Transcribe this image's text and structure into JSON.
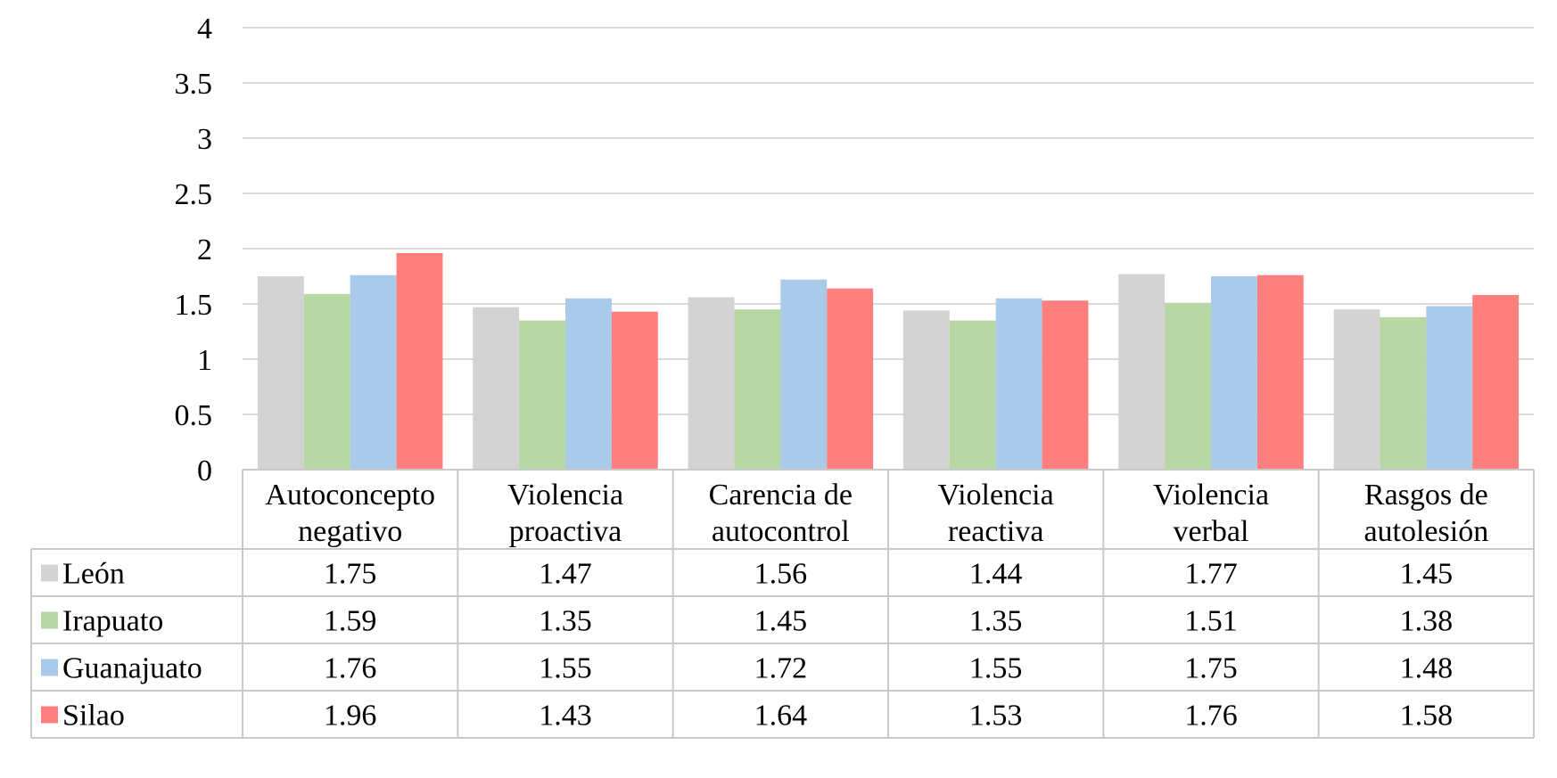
{
  "chart_data": {
    "type": "bar",
    "title": "",
    "xlabel": "",
    "ylabel": "",
    "ylim": [
      0,
      4
    ],
    "yticks": [
      "0",
      "0.5",
      "1",
      "1.5",
      "2",
      "2.5",
      "3",
      "3.5",
      "4"
    ],
    "grid": true,
    "legend": "data-table",
    "categories": [
      [
        "Autoconcepto",
        "negativo"
      ],
      [
        "Violencia",
        "proactiva"
      ],
      [
        "Carencia de",
        "autocontrol"
      ],
      [
        "Violencia",
        "reactiva"
      ],
      [
        "Violencia",
        "verbal"
      ],
      [
        "Rasgos de",
        "autolesión"
      ]
    ],
    "series": [
      {
        "name": "León",
        "color": "#d3d3d3",
        "values": [
          1.75,
          1.47,
          1.56,
          1.44,
          1.77,
          1.45
        ],
        "labels": [
          "1.75",
          "1.47",
          "1.56",
          "1.44",
          "1.77",
          "1.45"
        ]
      },
      {
        "name": "Irapuato",
        "color": "#b7d7a4",
        "values": [
          1.59,
          1.35,
          1.45,
          1.35,
          1.51,
          1.38
        ],
        "labels": [
          "1.59",
          "1.35",
          "1.45",
          "1.35",
          "1.51",
          "1.38"
        ]
      },
      {
        "name": "Guanajuato",
        "color": "#a9cae9",
        "values": [
          1.76,
          1.55,
          1.72,
          1.55,
          1.75,
          1.48
        ],
        "labels": [
          "1.76",
          "1.55",
          "1.72",
          "1.55",
          "1.75",
          "1.48"
        ]
      },
      {
        "name": "Silao",
        "color": "#ff7f7f",
        "values": [
          1.96,
          1.43,
          1.64,
          1.53,
          1.76,
          1.58
        ],
        "labels": [
          "1.96",
          "1.43",
          "1.64",
          "1.53",
          "1.76",
          "1.58"
        ]
      }
    ]
  }
}
